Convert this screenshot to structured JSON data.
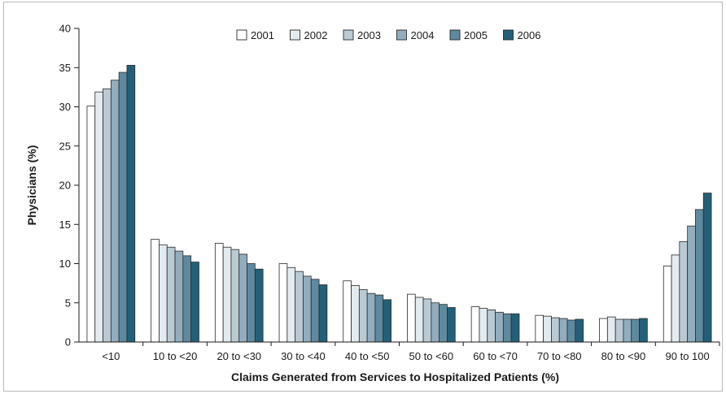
{
  "chart_data": {
    "type": "bar",
    "xlabel": "Claims Generated from Services to Hospitalized Patients (%)",
    "ylabel": "Physicians (%)",
    "ylim": [
      0,
      40
    ],
    "yticks": [
      0,
      5,
      10,
      15,
      20,
      25,
      30,
      35,
      40
    ],
    "legend_position": "top-center",
    "categories": [
      "<10",
      "10 to <20",
      "20 to <30",
      "30 to <40",
      "40 to <50",
      "50 to <60",
      "60 to <70",
      "70 to <80",
      "80 to <90",
      "90 to 100"
    ],
    "series": [
      {
        "name": "2001",
        "color": "#ffffff",
        "values": [
          30.1,
          13.1,
          12.6,
          10.0,
          7.8,
          6.1,
          4.5,
          3.4,
          3.0,
          9.7
        ]
      },
      {
        "name": "2002",
        "color": "#e3ebef",
        "values": [
          31.9,
          12.4,
          12.1,
          9.5,
          7.2,
          5.7,
          4.3,
          3.3,
          3.2,
          11.1
        ]
      },
      {
        "name": "2003",
        "color": "#b9cad4",
        "values": [
          32.3,
          12.1,
          11.8,
          9.0,
          6.7,
          5.5,
          4.1,
          3.1,
          2.9,
          12.8
        ]
      },
      {
        "name": "2004",
        "color": "#92adbd",
        "values": [
          33.4,
          11.6,
          11.2,
          8.4,
          6.2,
          5.0,
          3.8,
          3.0,
          2.9,
          14.8
        ]
      },
      {
        "name": "2005",
        "color": "#5e8aa0",
        "values": [
          34.4,
          11.0,
          10.0,
          8.0,
          6.0,
          4.8,
          3.6,
          2.8,
          2.9,
          16.9
        ]
      },
      {
        "name": "2006",
        "color": "#245f78",
        "values": [
          35.3,
          10.2,
          9.3,
          7.3,
          5.4,
          4.4,
          3.6,
          2.9,
          3.0,
          19.0
        ]
      }
    ]
  }
}
